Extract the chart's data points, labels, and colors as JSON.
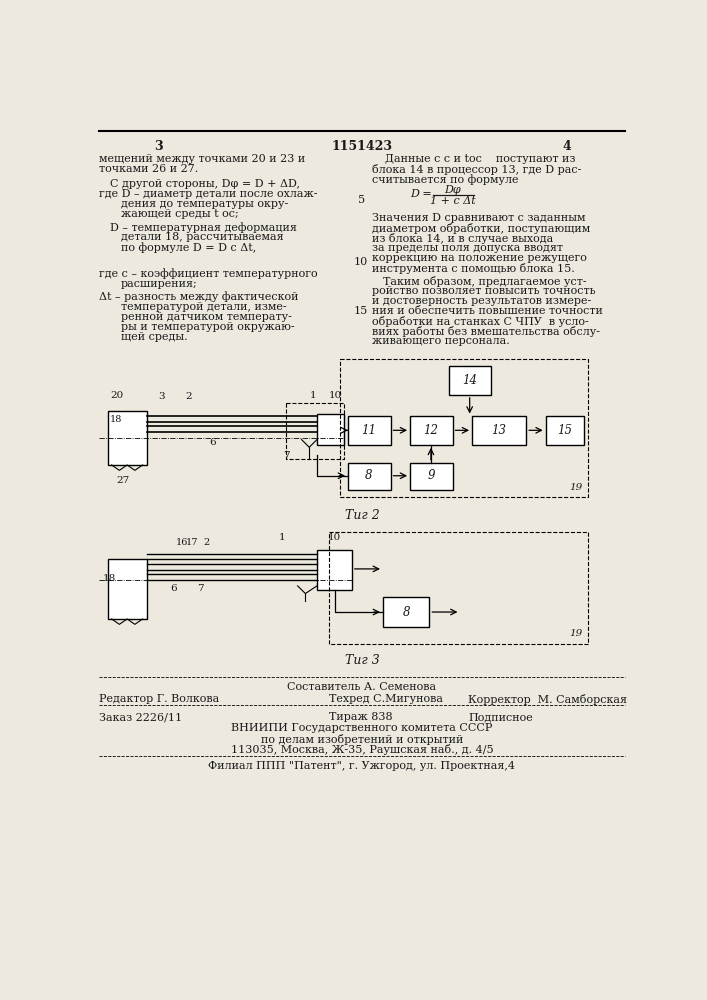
{
  "page_color": "#ede9df",
  "text_color": "#1a1a1a",
  "title_patent": "1151423",
  "page_left": "3",
  "page_right": "4",
  "fig2_label": "Τиг 2",
  "fig3_label": "Τиг 3",
  "footer_compiler": "Составитель А. Семенова",
  "footer_editor": "Редактор Г. Волкова",
  "footer_techred": "Техред С.Мигунова",
  "footer_corrector": "Корректор  М. Самборская",
  "footer_order": "Заказ 2226/11",
  "footer_edition": "Тираж 838",
  "footer_subscription": "Подписное",
  "footer_org": "ВНИИПИ Государственного комитета СССР",
  "footer_dept": "по делам изобретений и открытий",
  "footer_address": "113035, Москва, Ж-35, Раушская наб., д. 4/5",
  "footer_branch": "Филиал ППП \"Патент\", г. Ужгород, ул. Проектная,4"
}
